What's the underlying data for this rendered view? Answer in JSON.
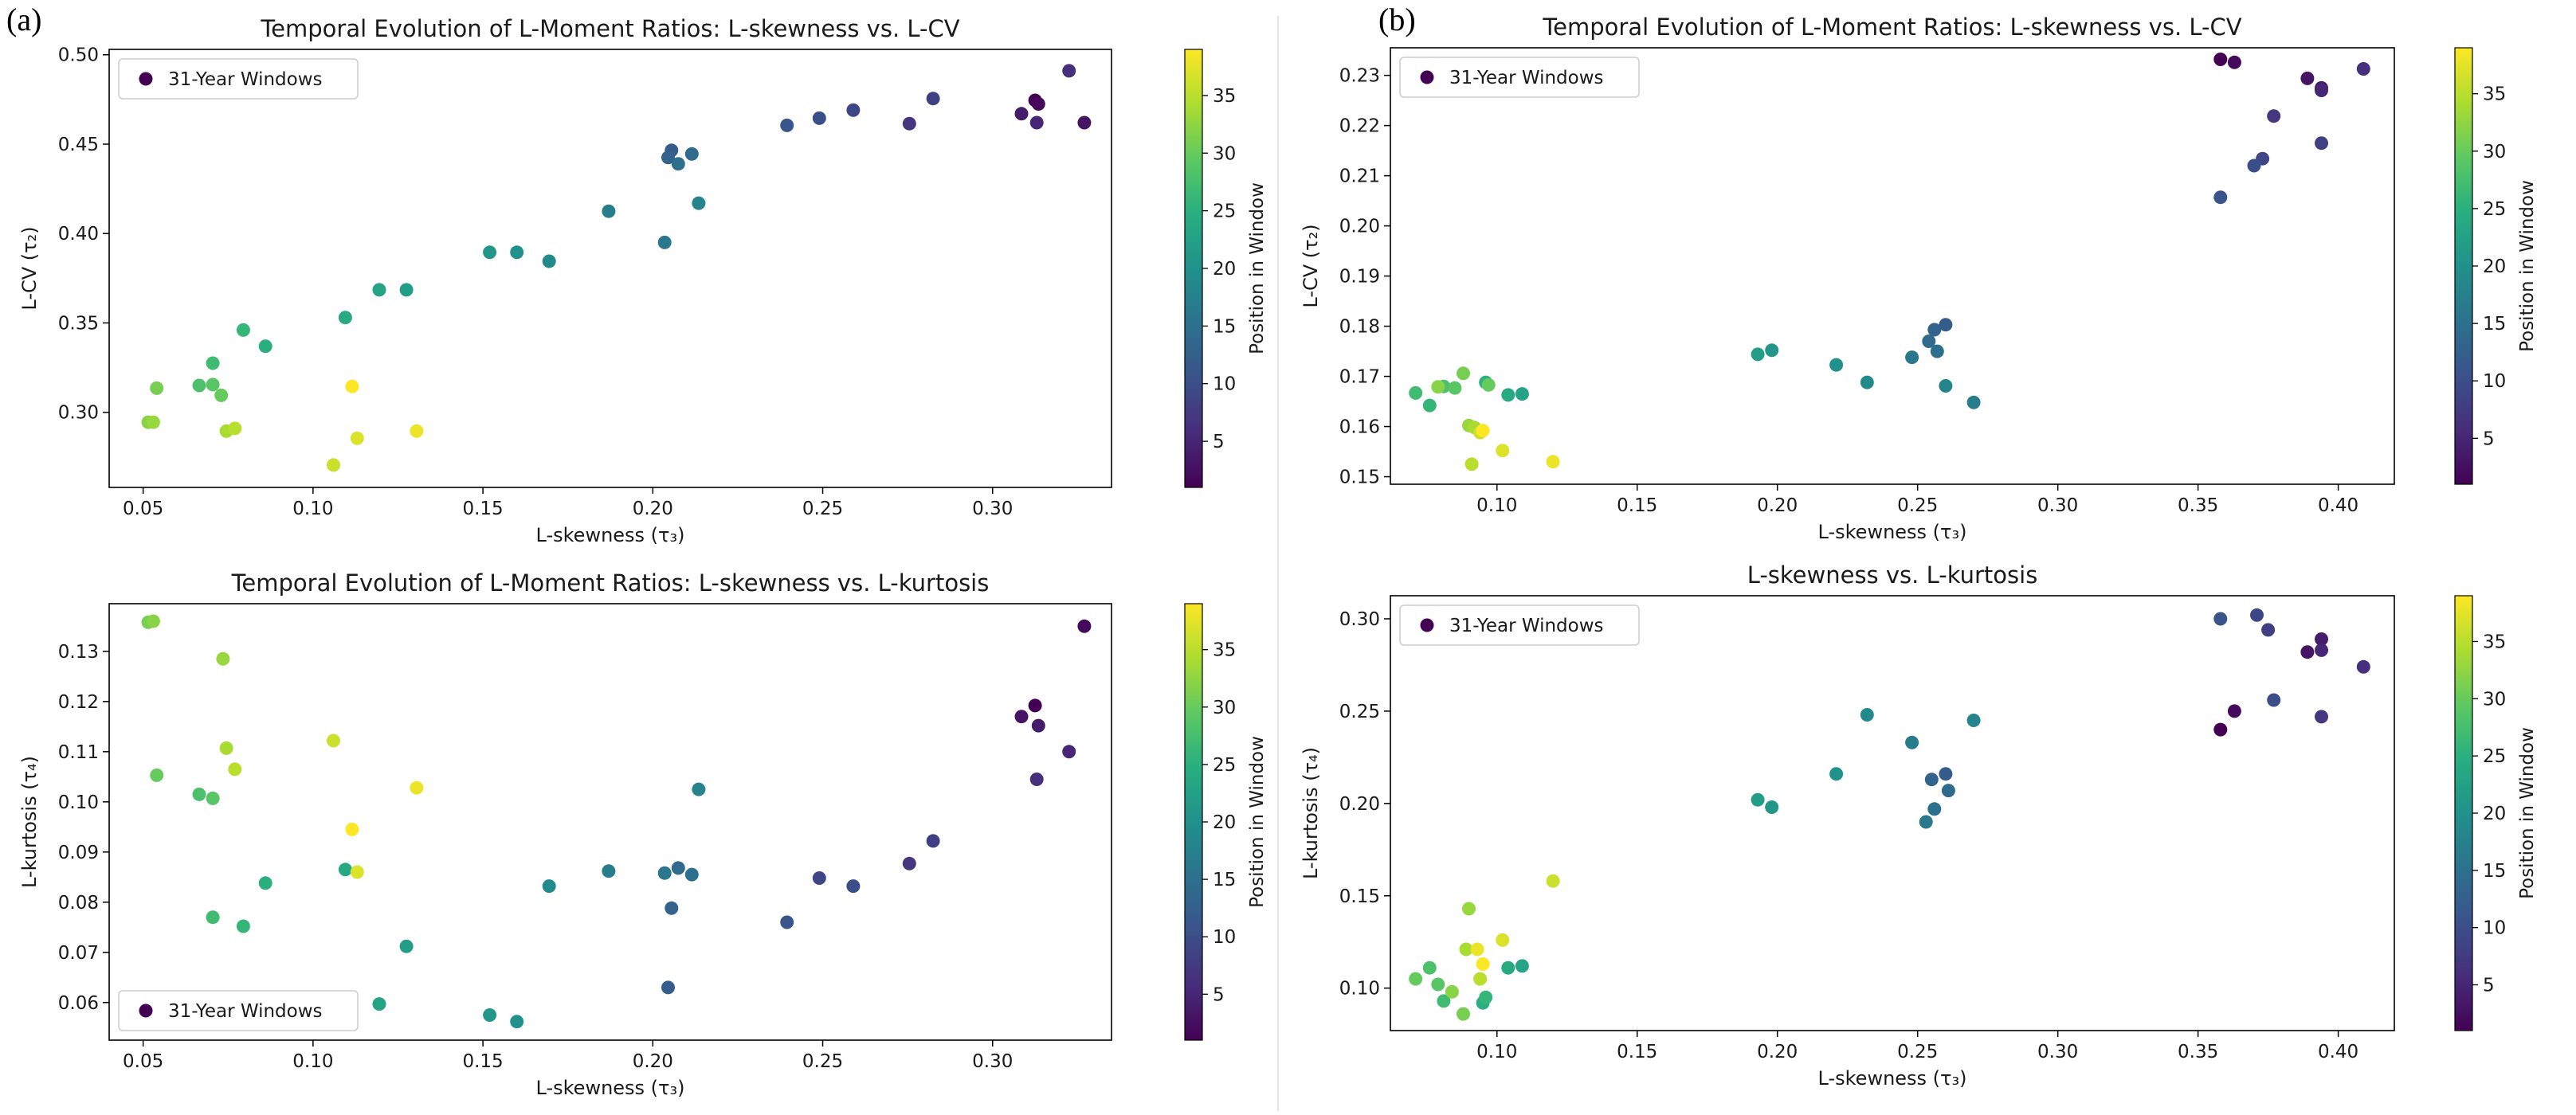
{
  "panels": [
    {
      "label": "(a)"
    },
    {
      "label": "(b)"
    }
  ],
  "colors": {
    "colormap": "viridis",
    "axis": "#000000",
    "legend_border": "#cccccc",
    "divider": "#e6e6e6"
  },
  "chart_data": [
    {
      "type": "scatter",
      "panel": "(a)",
      "title": "Temporal Evolution of L-Moment Ratios: L-skewness vs. L-CV",
      "xlabel": "L-skewness (τ₃)",
      "ylabel": "L-CV (τ₂)",
      "xlim": [
        0.04,
        0.335
      ],
      "ylim": [
        0.258,
        0.503
      ],
      "xticks": [
        0.05,
        0.1,
        0.15,
        0.2,
        0.25,
        0.3
      ],
      "xtick_labels": [
        "0.05",
        "0.10",
        "0.15",
        "0.20",
        "0.25",
        "0.30"
      ],
      "yticks": [
        0.3,
        0.35,
        0.4,
        0.45,
        0.5
      ],
      "ytick_labels": [
        "0.30",
        "0.35",
        "0.40",
        "0.45",
        "0.50"
      ],
      "legend": {
        "label": "31-Year Windows",
        "loc": "upper left"
      },
      "colorbar": {
        "label": "Position in Window",
        "range": [
          1,
          39
        ],
        "ticks": [
          5,
          10,
          15,
          20,
          25,
          30,
          35
        ],
        "tick_labels": [
          "5",
          "10",
          "15",
          "20",
          "25",
          "30",
          "35"
        ]
      },
      "points": [
        {
          "x": 0.3125,
          "y": 0.4745,
          "c": 1
        },
        {
          "x": 0.3135,
          "y": 0.4725,
          "c": 2
        },
        {
          "x": 0.327,
          "y": 0.462,
          "c": 3
        },
        {
          "x": 0.3085,
          "y": 0.467,
          "c": 4
        },
        {
          "x": 0.313,
          "y": 0.462,
          "c": 5
        },
        {
          "x": 0.3225,
          "y": 0.491,
          "c": 6
        },
        {
          "x": 0.2755,
          "y": 0.4615,
          "c": 7
        },
        {
          "x": 0.2825,
          "y": 0.4755,
          "c": 8
        },
        {
          "x": 0.259,
          "y": 0.469,
          "c": 9
        },
        {
          "x": 0.249,
          "y": 0.4645,
          "c": 10
        },
        {
          "x": 0.2395,
          "y": 0.4605,
          "c": 11
        },
        {
          "x": 0.2055,
          "y": 0.4465,
          "c": 12
        },
        {
          "x": 0.2045,
          "y": 0.4425,
          "c": 13
        },
        {
          "x": 0.2115,
          "y": 0.4445,
          "c": 14
        },
        {
          "x": 0.2075,
          "y": 0.439,
          "c": 15
        },
        {
          "x": 0.2035,
          "y": 0.395,
          "c": 16
        },
        {
          "x": 0.187,
          "y": 0.4125,
          "c": 17
        },
        {
          "x": 0.2135,
          "y": 0.417,
          "c": 18
        },
        {
          "x": 0.1695,
          "y": 0.3845,
          "c": 19
        },
        {
          "x": 0.16,
          "y": 0.3895,
          "c": 20
        },
        {
          "x": 0.152,
          "y": 0.3895,
          "c": 21
        },
        {
          "x": 0.1275,
          "y": 0.3685,
          "c": 22
        },
        {
          "x": 0.1195,
          "y": 0.3685,
          "c": 23
        },
        {
          "x": 0.1095,
          "y": 0.353,
          "c": 24
        },
        {
          "x": 0.086,
          "y": 0.337,
          "c": 25
        },
        {
          "x": 0.0795,
          "y": 0.346,
          "c": 26
        },
        {
          "x": 0.0705,
          "y": 0.3275,
          "c": 27
        },
        {
          "x": 0.0665,
          "y": 0.315,
          "c": 28
        },
        {
          "x": 0.0705,
          "y": 0.3155,
          "c": 29
        },
        {
          "x": 0.073,
          "y": 0.3095,
          "c": 30
        },
        {
          "x": 0.054,
          "y": 0.3135,
          "c": 31
        },
        {
          "x": 0.0515,
          "y": 0.2945,
          "c": 32
        },
        {
          "x": 0.053,
          "y": 0.2945,
          "c": 33
        },
        {
          "x": 0.0745,
          "y": 0.2895,
          "c": 34
        },
        {
          "x": 0.077,
          "y": 0.291,
          "c": 35
        },
        {
          "x": 0.106,
          "y": 0.2705,
          "c": 36
        },
        {
          "x": 0.113,
          "y": 0.2855,
          "c": 37
        },
        {
          "x": 0.1305,
          "y": 0.2895,
          "c": 38
        },
        {
          "x": 0.1115,
          "y": 0.3145,
          "c": 39
        }
      ]
    },
    {
      "type": "scatter",
      "panel": "(a)",
      "title": "Temporal Evolution of L-Moment Ratios: L-skewness vs. L-kurtosis",
      "xlabel": "L-skewness (τ₃)",
      "ylabel": "L-kurtosis (τ₄)",
      "xlim": [
        0.04,
        0.335
      ],
      "ylim": [
        0.0525,
        0.1395
      ],
      "xticks": [
        0.05,
        0.1,
        0.15,
        0.2,
        0.25,
        0.3
      ],
      "xtick_labels": [
        "0.05",
        "0.10",
        "0.15",
        "0.20",
        "0.25",
        "0.30"
      ],
      "yticks": [
        0.06,
        0.07,
        0.08,
        0.09,
        0.1,
        0.11,
        0.12,
        0.13
      ],
      "ytick_labels": [
        "0.06",
        "0.07",
        "0.08",
        "0.09",
        "0.10",
        "0.11",
        "0.12",
        "0.13"
      ],
      "legend": {
        "label": "31-Year Windows",
        "loc": "lower left"
      },
      "colorbar": {
        "label": "Position in Window",
        "range": [
          1,
          39
        ],
        "ticks": [
          5,
          10,
          15,
          20,
          25,
          30,
          35
        ],
        "tick_labels": [
          "5",
          "10",
          "15",
          "20",
          "25",
          "30",
          "35"
        ]
      },
      "points": [
        {
          "x": 0.3125,
          "y": 0.1192,
          "c": 1
        },
        {
          "x": 0.327,
          "y": 0.135,
          "c": 2
        },
        {
          "x": 0.3085,
          "y": 0.117,
          "c": 3
        },
        {
          "x": 0.3135,
          "y": 0.1152,
          "c": 4
        },
        {
          "x": 0.3225,
          "y": 0.11,
          "c": 5
        },
        {
          "x": 0.313,
          "y": 0.1045,
          "c": 6
        },
        {
          "x": 0.2755,
          "y": 0.0877,
          "c": 7
        },
        {
          "x": 0.2825,
          "y": 0.0922,
          "c": 8
        },
        {
          "x": 0.249,
          "y": 0.0848,
          "c": 9
        },
        {
          "x": 0.259,
          "y": 0.0832,
          "c": 10
        },
        {
          "x": 0.2395,
          "y": 0.076,
          "c": 11
        },
        {
          "x": 0.2045,
          "y": 0.063,
          "c": 12
        },
        {
          "x": 0.2055,
          "y": 0.0788,
          "c": 13
        },
        {
          "x": 0.2075,
          "y": 0.0868,
          "c": 14
        },
        {
          "x": 0.2115,
          "y": 0.0855,
          "c": 15
        },
        {
          "x": 0.2035,
          "y": 0.0858,
          "c": 16
        },
        {
          "x": 0.187,
          "y": 0.0862,
          "c": 17
        },
        {
          "x": 0.2135,
          "y": 0.1025,
          "c": 18
        },
        {
          "x": 0.1695,
          "y": 0.0832,
          "c": 19
        },
        {
          "x": 0.16,
          "y": 0.0562,
          "c": 20
        },
        {
          "x": 0.152,
          "y": 0.0575,
          "c": 21
        },
        {
          "x": 0.1275,
          "y": 0.0712,
          "c": 22
        },
        {
          "x": 0.1195,
          "y": 0.0597,
          "c": 23
        },
        {
          "x": 0.1095,
          "y": 0.0865,
          "c": 24
        },
        {
          "x": 0.086,
          "y": 0.0838,
          "c": 25
        },
        {
          "x": 0.0795,
          "y": 0.0752,
          "c": 26
        },
        {
          "x": 0.0705,
          "y": 0.077,
          "c": 27
        },
        {
          "x": 0.0665,
          "y": 0.1015,
          "c": 28
        },
        {
          "x": 0.0705,
          "y": 0.1007,
          "c": 29
        },
        {
          "x": 0.054,
          "y": 0.1053,
          "c": 30
        },
        {
          "x": 0.0515,
          "y": 0.1358,
          "c": 31
        },
        {
          "x": 0.053,
          "y": 0.136,
          "c": 32
        },
        {
          "x": 0.0735,
          "y": 0.1285,
          "c": 33
        },
        {
          "x": 0.0745,
          "y": 0.1107,
          "c": 34
        },
        {
          "x": 0.077,
          "y": 0.1065,
          "c": 35
        },
        {
          "x": 0.106,
          "y": 0.1122,
          "c": 36
        },
        {
          "x": 0.113,
          "y": 0.086,
          "c": 37
        },
        {
          "x": 0.1305,
          "y": 0.1028,
          "c": 38
        },
        {
          "x": 0.1115,
          "y": 0.0945,
          "c": 39
        }
      ]
    },
    {
      "type": "scatter",
      "panel": "(b)",
      "title": "Temporal Evolution of L-Moment Ratios: L-skewness vs. L-CV",
      "xlabel": "L-skewness (τ₃)",
      "ylabel": "L-CV (τ₂)",
      "xlim": [
        0.062,
        0.42
      ],
      "ylim": [
        0.1485,
        0.2355
      ],
      "xticks": [
        0.1,
        0.15,
        0.2,
        0.25,
        0.3,
        0.35,
        0.4
      ],
      "xtick_labels": [
        "0.10",
        "0.15",
        "0.20",
        "0.25",
        "0.30",
        "0.35",
        "0.40"
      ],
      "yticks": [
        0.15,
        0.16,
        0.17,
        0.18,
        0.19,
        0.2,
        0.21,
        0.22,
        0.23
      ],
      "ytick_labels": [
        "0.15",
        "0.16",
        "0.17",
        "0.18",
        "0.19",
        "0.20",
        "0.21",
        "0.22",
        "0.23"
      ],
      "legend": {
        "label": "31-Year Windows",
        "loc": "upper left"
      },
      "colorbar": {
        "label": "Position in Window",
        "range": [
          1,
          39
        ],
        "ticks": [
          5,
          10,
          15,
          20,
          25,
          30,
          35
        ],
        "tick_labels": [
          "5",
          "10",
          "15",
          "20",
          "25",
          "30",
          "35"
        ]
      },
      "points": [
        {
          "x": 0.358,
          "y": 0.2332,
          "c": 1
        },
        {
          "x": 0.363,
          "y": 0.2326,
          "c": 2
        },
        {
          "x": 0.389,
          "y": 0.2294,
          "c": 3
        },
        {
          "x": 0.394,
          "y": 0.2275,
          "c": 4
        },
        {
          "x": 0.394,
          "y": 0.227,
          "c": 5
        },
        {
          "x": 0.409,
          "y": 0.2313,
          "c": 6
        },
        {
          "x": 0.377,
          "y": 0.2219,
          "c": 7
        },
        {
          "x": 0.394,
          "y": 0.2165,
          "c": 8
        },
        {
          "x": 0.373,
          "y": 0.2134,
          "c": 9
        },
        {
          "x": 0.37,
          "y": 0.212,
          "c": 10
        },
        {
          "x": 0.358,
          "y": 0.2057,
          "c": 11
        },
        {
          "x": 0.26,
          "y": 0.1803,
          "c": 12
        },
        {
          "x": 0.256,
          "y": 0.1793,
          "c": 13
        },
        {
          "x": 0.254,
          "y": 0.177,
          "c": 14
        },
        {
          "x": 0.257,
          "y": 0.175,
          "c": 15
        },
        {
          "x": 0.248,
          "y": 0.1738,
          "c": 16
        },
        {
          "x": 0.27,
          "y": 0.1648,
          "c": 17
        },
        {
          "x": 0.26,
          "y": 0.1681,
          "c": 18
        },
        {
          "x": 0.232,
          "y": 0.1688,
          "c": 19
        },
        {
          "x": 0.221,
          "y": 0.1723,
          "c": 20
        },
        {
          "x": 0.198,
          "y": 0.1752,
          "c": 21
        },
        {
          "x": 0.193,
          "y": 0.1744,
          "c": 22
        },
        {
          "x": 0.109,
          "y": 0.1665,
          "c": 23
        },
        {
          "x": 0.104,
          "y": 0.1663,
          "c": 24
        },
        {
          "x": 0.096,
          "y": 0.1688,
          "c": 25
        },
        {
          "x": 0.076,
          "y": 0.1642,
          "c": 26
        },
        {
          "x": 0.071,
          "y": 0.1667,
          "c": 27
        },
        {
          "x": 0.081,
          "y": 0.168,
          "c": 28
        },
        {
          "x": 0.085,
          "y": 0.1677,
          "c": 29
        },
        {
          "x": 0.097,
          "y": 0.1683,
          "c": 30
        },
        {
          "x": 0.088,
          "y": 0.1706,
          "c": 31
        },
        {
          "x": 0.079,
          "y": 0.1679,
          "c": 32
        },
        {
          "x": 0.09,
          "y": 0.1602,
          "c": 33
        },
        {
          "x": 0.092,
          "y": 0.1598,
          "c": 34
        },
        {
          "x": 0.091,
          "y": 0.1525,
          "c": 35
        },
        {
          "x": 0.094,
          "y": 0.1588,
          "c": 36
        },
        {
          "x": 0.102,
          "y": 0.1552,
          "c": 37
        },
        {
          "x": 0.12,
          "y": 0.153,
          "c": 38
        },
        {
          "x": 0.095,
          "y": 0.1592,
          "c": 39
        }
      ]
    },
    {
      "type": "scatter",
      "panel": "(b)",
      "title": "L-skewness vs. L-kurtosis",
      "xlabel": "L-skewness (τ₃)",
      "ylabel": "L-kurtosis (τ₄)",
      "xlim": [
        0.062,
        0.42
      ],
      "ylim": [
        0.077,
        0.3125
      ],
      "xticks": [
        0.1,
        0.15,
        0.2,
        0.25,
        0.3,
        0.35,
        0.4
      ],
      "xtick_labels": [
        "0.10",
        "0.15",
        "0.20",
        "0.25",
        "0.30",
        "0.35",
        "0.40"
      ],
      "yticks": [
        0.1,
        0.15,
        0.2,
        0.25,
        0.3
      ],
      "ytick_labels": [
        "0.10",
        "0.15",
        "0.20",
        "0.25",
        "0.30"
      ],
      "legend": {
        "label": "31-Year Windows",
        "loc": "upper left"
      },
      "colorbar": {
        "label": "Position in Window",
        "range": [
          1,
          39
        ],
        "ticks": [
          5,
          10,
          15,
          20,
          25,
          30,
          35
        ],
        "tick_labels": [
          "5",
          "10",
          "15",
          "20",
          "25",
          "30",
          "35"
        ]
      },
      "points": [
        {
          "x": 0.358,
          "y": 0.24,
          "c": 1
        },
        {
          "x": 0.363,
          "y": 0.25,
          "c": 2
        },
        {
          "x": 0.389,
          "y": 0.282,
          "c": 3
        },
        {
          "x": 0.394,
          "y": 0.289,
          "c": 4
        },
        {
          "x": 0.394,
          "y": 0.283,
          "c": 5
        },
        {
          "x": 0.409,
          "y": 0.274,
          "c": 6
        },
        {
          "x": 0.394,
          "y": 0.247,
          "c": 7
        },
        {
          "x": 0.375,
          "y": 0.294,
          "c": 8
        },
        {
          "x": 0.371,
          "y": 0.302,
          "c": 9
        },
        {
          "x": 0.377,
          "y": 0.256,
          "c": 10
        },
        {
          "x": 0.358,
          "y": 0.3,
          "c": 11
        },
        {
          "x": 0.26,
          "y": 0.216,
          "c": 12
        },
        {
          "x": 0.255,
          "y": 0.213,
          "c": 13
        },
        {
          "x": 0.261,
          "y": 0.207,
          "c": 14
        },
        {
          "x": 0.256,
          "y": 0.197,
          "c": 15
        },
        {
          "x": 0.253,
          "y": 0.19,
          "c": 16
        },
        {
          "x": 0.248,
          "y": 0.233,
          "c": 17
        },
        {
          "x": 0.27,
          "y": 0.245,
          "c": 18
        },
        {
          "x": 0.232,
          "y": 0.248,
          "c": 19
        },
        {
          "x": 0.221,
          "y": 0.216,
          "c": 20
        },
        {
          "x": 0.198,
          "y": 0.198,
          "c": 21
        },
        {
          "x": 0.193,
          "y": 0.202,
          "c": 22
        },
        {
          "x": 0.109,
          "y": 0.112,
          "c": 23
        },
        {
          "x": 0.104,
          "y": 0.111,
          "c": 24
        },
        {
          "x": 0.095,
          "y": 0.092,
          "c": 25
        },
        {
          "x": 0.096,
          "y": 0.095,
          "c": 26
        },
        {
          "x": 0.081,
          "y": 0.093,
          "c": 27
        },
        {
          "x": 0.076,
          "y": 0.111,
          "c": 28
        },
        {
          "x": 0.079,
          "y": 0.102,
          "c": 29
        },
        {
          "x": 0.071,
          "y": 0.105,
          "c": 30
        },
        {
          "x": 0.088,
          "y": 0.086,
          "c": 31
        },
        {
          "x": 0.084,
          "y": 0.098,
          "c": 32
        },
        {
          "x": 0.09,
          "y": 0.143,
          "c": 33
        },
        {
          "x": 0.089,
          "y": 0.121,
          "c": 34
        },
        {
          "x": 0.094,
          "y": 0.105,
          "c": 35
        },
        {
          "x": 0.12,
          "y": 0.158,
          "c": 36
        },
        {
          "x": 0.102,
          "y": 0.126,
          "c": 37
        },
        {
          "x": 0.093,
          "y": 0.121,
          "c": 38
        },
        {
          "x": 0.095,
          "y": 0.113,
          "c": 39
        }
      ]
    }
  ]
}
